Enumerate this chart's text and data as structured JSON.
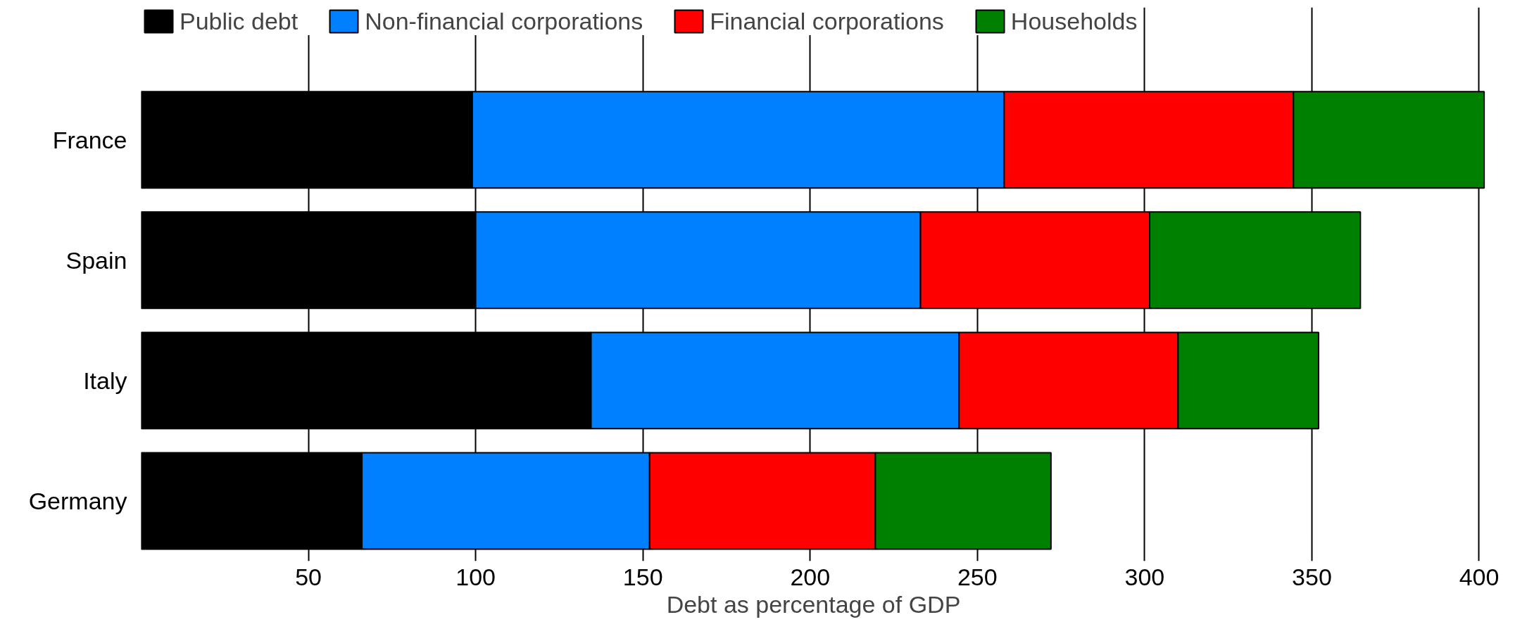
{
  "chart_data": {
    "type": "bar",
    "orientation": "horizontal",
    "stacked": true,
    "xlabel": "Debt as percentage of GDP",
    "categories": [
      "France",
      "Spain",
      "Italy",
      "Germany"
    ],
    "series": [
      {
        "name": "Public debt",
        "color": "#000000",
        "values": [
          99,
          100,
          134.5,
          66
        ]
      },
      {
        "name": "Non-financial corporations",
        "color": "#0080ff",
        "values": [
          159,
          133,
          110,
          86
        ]
      },
      {
        "name": "Financial corporations",
        "color": "#ff0000",
        "values": [
          86.5,
          68.5,
          65.5,
          67.5
        ]
      },
      {
        "name": "Households",
        "color": "#008000",
        "values": [
          57,
          63,
          42,
          52.5
        ]
      }
    ],
    "xlim": [
      0,
      402
    ],
    "xticks": [
      50,
      100,
      150,
      200,
      250,
      300,
      350,
      400
    ],
    "grid": "x",
    "legend": "top"
  }
}
